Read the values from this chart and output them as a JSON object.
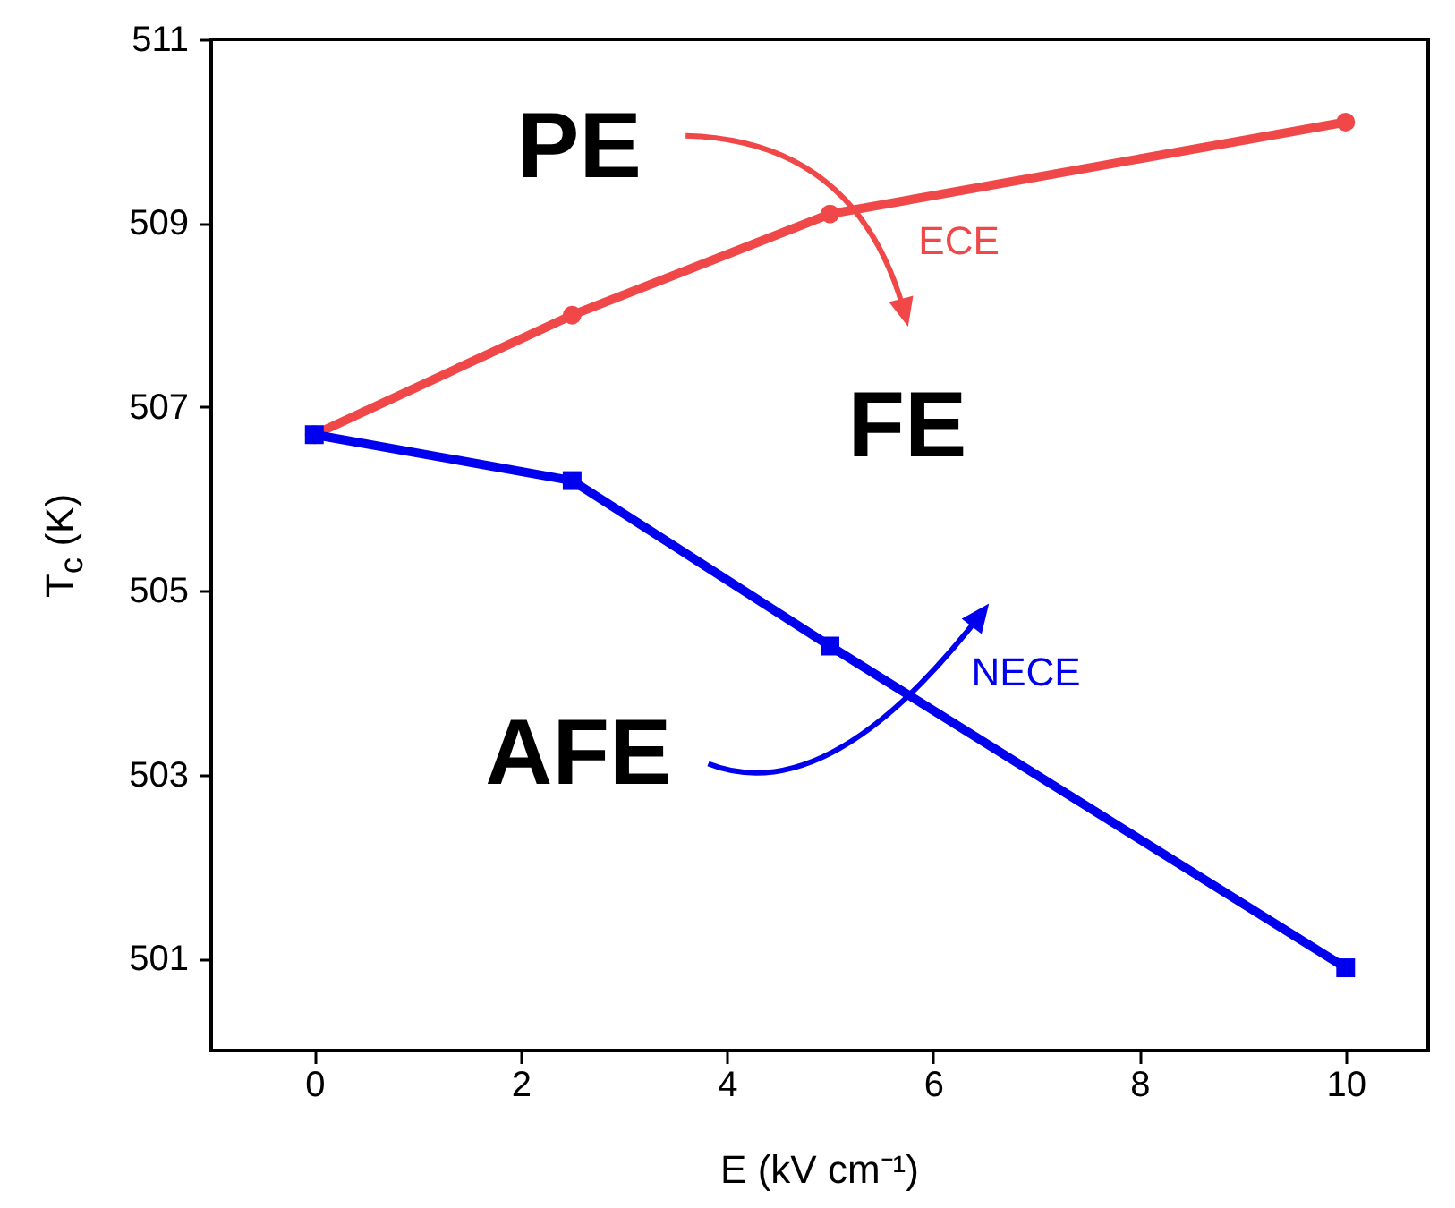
{
  "chart_data": {
    "type": "line",
    "xlabel": "E (kV cm⁻¹)",
    "ylabel": "T$_{c}$ (K)",
    "xlim": [
      -1,
      10.8
    ],
    "ylim": [
      500,
      511
    ],
    "xticks": [
      0,
      2,
      4,
      6,
      8,
      10
    ],
    "yticks": [
      501,
      503,
      505,
      507,
      509,
      511
    ],
    "line_style": "solid",
    "series": [
      {
        "color": "#f04848",
        "marker": "circle",
        "x": [
          0,
          2.5,
          5,
          10
        ],
        "values": [
          506.7,
          508.0,
          509.1,
          510.1
        ]
      },
      {
        "color": "#0000ee",
        "marker": "square",
        "x": [
          0,
          2.5,
          5,
          10
        ],
        "values": [
          506.7,
          506.2,
          504.4,
          500.9
        ]
      }
    ],
    "annotations": [
      "PE",
      "FE",
      "AFE",
      "ECE",
      "NECE"
    ]
  }
}
